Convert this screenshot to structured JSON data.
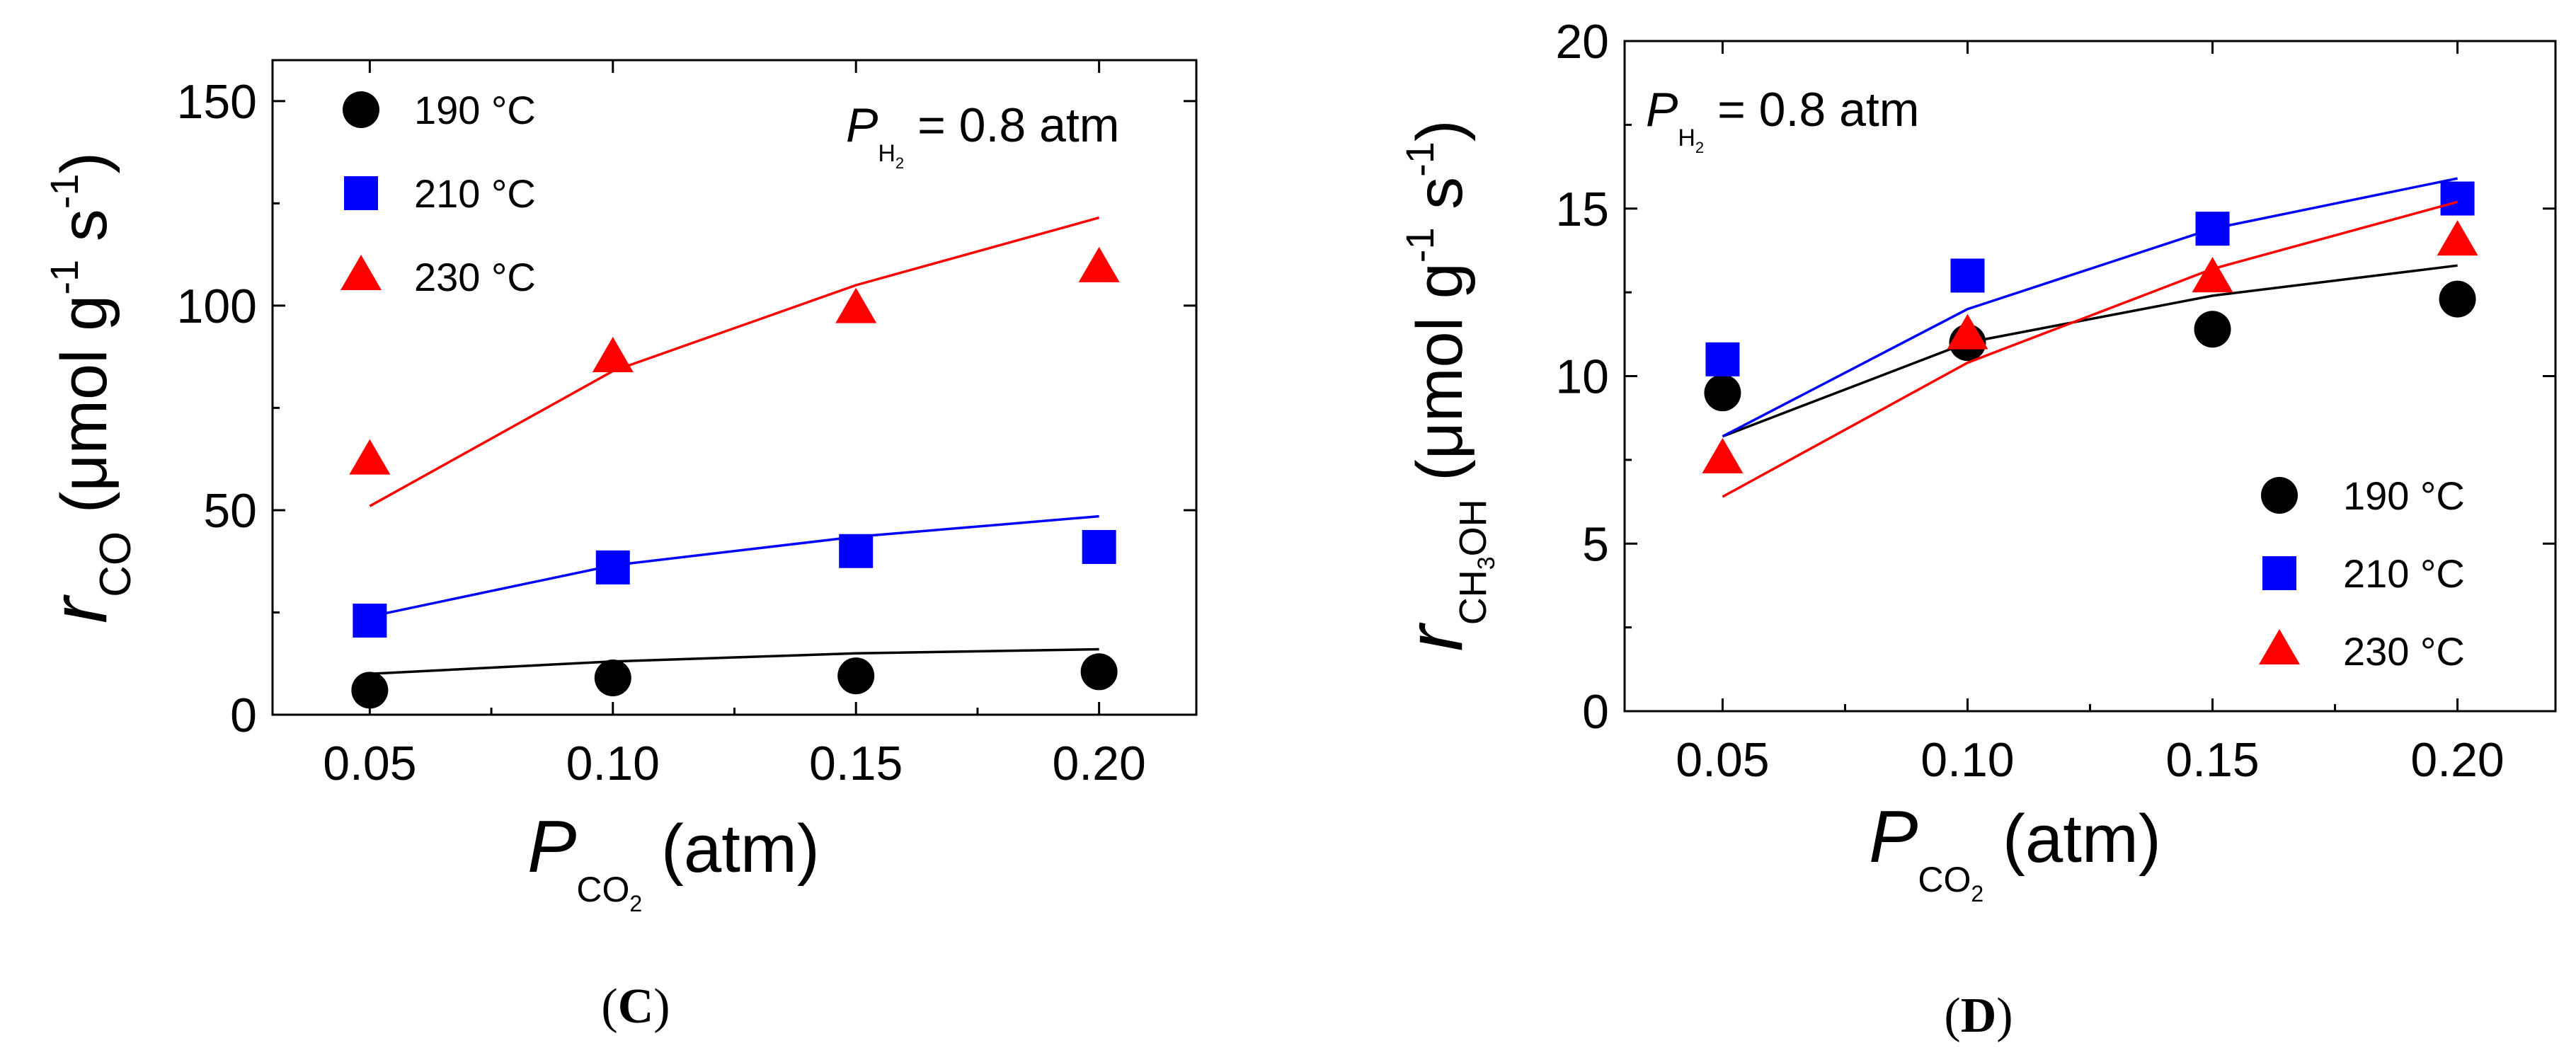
{
  "chart_data": [
    {
      "type": "scatter",
      "panel": "C",
      "panel_label": "C",
      "x": [
        0.05,
        0.1,
        0.15,
        0.2
      ],
      "xlim": [
        0.03,
        0.22
      ],
      "xticks": [
        0.05,
        0.1,
        0.15,
        0.2
      ],
      "xtick_labels": [
        "0.05",
        "0.10",
        "0.15",
        "0.20"
      ],
      "ylim": [
        0,
        160
      ],
      "yticks": [
        0,
        50,
        100,
        150
      ],
      "ytick_labels": [
        "0",
        "50",
        "100",
        "150"
      ],
      "xlabel": {
        "main": "P",
        "sub": "CO",
        "subsub": "2",
        "unit": "(atm)"
      },
      "ylabel": {
        "main": "r",
        "sub": "CO",
        "unit": "(μmol g",
        "exp1": "-1",
        "mid": "s",
        "exp2": "-1",
        "close": ")"
      },
      "annotation": {
        "main": "P",
        "sub": "H",
        "subsub": "2",
        "rest": "= 0.8 atm"
      },
      "legend_position": "top-left",
      "series": [
        {
          "name": "190 °C",
          "marker": "circle",
          "color": "#000000",
          "values": [
            6,
            9,
            9.5,
            10.5
          ],
          "fit": [
            10,
            13,
            15,
            16
          ]
        },
        {
          "name": "210 °C",
          "marker": "square",
          "color": "#0000ff",
          "values": [
            23,
            36,
            40,
            41
          ],
          "fit": [
            24,
            36.5,
            43.5,
            48.5
          ]
        },
        {
          "name": "230 °C",
          "marker": "triangle",
          "color": "#ff0000",
          "values": [
            62,
            87,
            99,
            109
          ],
          "fit": [
            51,
            84,
            105,
            121.5
          ]
        }
      ]
    },
    {
      "type": "scatter",
      "panel": "D",
      "panel_label": "D",
      "x": [
        0.05,
        0.1,
        0.15,
        0.2
      ],
      "xlim": [
        0.03,
        0.22
      ],
      "xticks": [
        0.05,
        0.1,
        0.15,
        0.2
      ],
      "xtick_labels": [
        "0.05",
        "0.10",
        "0.15",
        "0.20"
      ],
      "ylim": [
        0,
        20
      ],
      "yticks": [
        0,
        5,
        10,
        15,
        20
      ],
      "ytick_labels": [
        "0",
        "5",
        "10",
        "15",
        "20"
      ],
      "xlabel": {
        "main": "P",
        "sub": "CO",
        "subsub": "2",
        "unit": "(atm)"
      },
      "ylabel": {
        "main": "r",
        "sub": "CH",
        "subsub": "3",
        "sub2": "OH",
        "unit": "(μmol g",
        "exp1": "-1",
        "mid": "s",
        "exp2": "-1",
        "close": ")"
      },
      "annotation": {
        "main": "P",
        "sub": "H",
        "subsub": "2",
        "rest": "= 0.8 atm"
      },
      "legend_position": "bottom-right",
      "series": [
        {
          "name": "190 °C",
          "marker": "circle",
          "color": "#000000",
          "values": [
            9.5,
            11,
            11.4,
            12.3
          ],
          "fit": [
            8.2,
            11,
            12.4,
            13.3
          ]
        },
        {
          "name": "210 °C",
          "marker": "square",
          "color": "#0000ff",
          "values": [
            10.5,
            13,
            14.4,
            15.3
          ],
          "fit": [
            8.2,
            12,
            14.4,
            15.9
          ]
        },
        {
          "name": "230 °C",
          "marker": "triangle",
          "color": "#ff0000",
          "values": [
            7.5,
            11.2,
            12.9,
            14
          ],
          "fit": [
            6.4,
            10.4,
            13.2,
            15.2
          ]
        }
      ]
    }
  ]
}
